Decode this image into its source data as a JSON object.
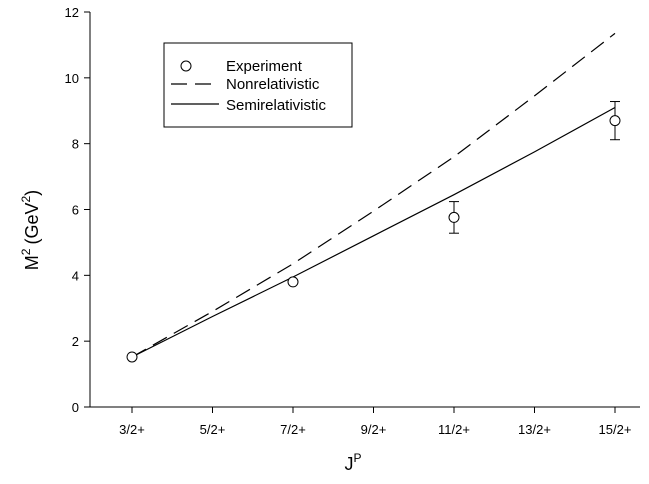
{
  "chart_data": {
    "type": "line",
    "categories": [
      "3/2+",
      "5/2+",
      "7/2+",
      "9/2+",
      "11/2+",
      "13/2+",
      "15/2+"
    ],
    "xlabel": "J",
    "xlabel_sup": "P",
    "ylabel": "M",
    "ylabel_sup": "2",
    "ylabel_unit": "(GeV",
    "ylabel_unit_sup": "2",
    "ylabel_close": ")",
    "ylim": [
      0,
      12
    ],
    "yticks": [
      0,
      2,
      4,
      6,
      8,
      10,
      12
    ],
    "grid": false,
    "legend_position": "top-left",
    "series": [
      {
        "name": "Experiment",
        "style": "markers",
        "points": [
          {
            "x": "3/2+",
            "y": 1.52,
            "err": 0
          },
          {
            "x": "7/2+",
            "y": 3.8,
            "err": 0
          },
          {
            "x": "11/2+",
            "y": 5.76,
            "err": 0.48
          },
          {
            "x": "15/2+",
            "y": 8.7,
            "err": 0.58
          }
        ]
      },
      {
        "name": "Nonrelativistic",
        "style": "dashed",
        "values": [
          1.52,
          2.9,
          4.35,
          5.95,
          7.6,
          9.45,
          11.35
        ]
      },
      {
        "name": "Semirelativistic",
        "style": "solid",
        "values": [
          1.52,
          2.75,
          3.95,
          5.2,
          6.45,
          7.75,
          9.1
        ]
      }
    ]
  }
}
